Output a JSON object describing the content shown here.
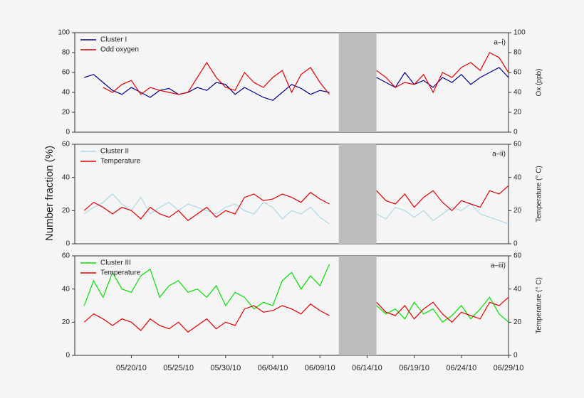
{
  "ylabel": "Number fraction (%)",
  "chart_data": [
    {
      "type": "line",
      "panel_label": "a–i)",
      "y2label": "Ox (ppb)",
      "x": [
        "05/15/10",
        "05/16/10",
        "05/17/10",
        "05/18/10",
        "05/19/10",
        "05/20/10",
        "05/21/10",
        "05/22/10",
        "05/23/10",
        "05/24/10",
        "05/25/10",
        "05/26/10",
        "05/27/10",
        "05/28/10",
        "05/29/10",
        "05/30/10",
        "05/31/10",
        "06/01/10",
        "06/02/10",
        "06/03/10",
        "06/04/10",
        "06/05/10",
        "06/06/10",
        "06/07/10",
        "06/08/10",
        "06/09/10",
        "06/10/10",
        "06/11/10",
        "06/12/10",
        "06/13/10",
        "06/14/10",
        "06/15/10",
        "06/16/10",
        "06/17/10",
        "06/18/10",
        "06/19/10",
        "06/20/10",
        "06/21/10",
        "06/22/10",
        "06/23/10",
        "06/24/10",
        "06/25/10",
        "06/26/10",
        "06/27/10",
        "06/28/10",
        "06/29/10"
      ],
      "xlim": [
        "05/14/10",
        "06/29/10"
      ],
      "shaded_region": [
        "06/11/10",
        "06/15/10"
      ],
      "ylim": [
        0,
        100
      ],
      "yticks": [
        0,
        20,
        40,
        60,
        80,
        100
      ],
      "y2lim": [
        0,
        100
      ],
      "y2ticks": [
        0,
        20,
        40,
        60,
        80,
        100
      ],
      "series": [
        {
          "name": "Cluster I",
          "color": "#00008b",
          "values": [
            55,
            58,
            50,
            42,
            38,
            45,
            40,
            35,
            42,
            44,
            38,
            40,
            45,
            42,
            50,
            48,
            38,
            45,
            40,
            35,
            32,
            40,
            48,
            44,
            38,
            42,
            40,
            null,
            null,
            null,
            null,
            55,
            50,
            45,
            60,
            48,
            52,
            45,
            55,
            50,
            58,
            48,
            55,
            60,
            65,
            55
          ]
        },
        {
          "name": "Odd oxygen",
          "color": "#e00000",
          "axis": "y2",
          "values": [
            null,
            null,
            45,
            40,
            48,
            52,
            38,
            45,
            42,
            40,
            38,
            40,
            55,
            70,
            55,
            45,
            42,
            60,
            50,
            45,
            55,
            62,
            40,
            58,
            65,
            50,
            38,
            null,
            null,
            null,
            null,
            62,
            55,
            45,
            50,
            48,
            58,
            40,
            60,
            55,
            65,
            70,
            62,
            80,
            75,
            60
          ]
        }
      ]
    },
    {
      "type": "line",
      "panel_label": "a–ii)",
      "y2label": "Temperature (° C)",
      "x": [
        "05/15/10",
        "05/16/10",
        "05/17/10",
        "05/18/10",
        "05/19/10",
        "05/20/10",
        "05/21/10",
        "05/22/10",
        "05/23/10",
        "05/24/10",
        "05/25/10",
        "05/26/10",
        "05/27/10",
        "05/28/10",
        "05/29/10",
        "05/30/10",
        "05/31/10",
        "06/01/10",
        "06/02/10",
        "06/03/10",
        "06/04/10",
        "06/05/10",
        "06/06/10",
        "06/07/10",
        "06/08/10",
        "06/09/10",
        "06/10/10",
        "06/11/10",
        "06/12/10",
        "06/13/10",
        "06/14/10",
        "06/15/10",
        "06/16/10",
        "06/17/10",
        "06/18/10",
        "06/19/10",
        "06/20/10",
        "06/21/10",
        "06/22/10",
        "06/23/10",
        "06/24/10",
        "06/25/10",
        "06/26/10",
        "06/27/10",
        "06/28/10",
        "06/29/10"
      ],
      "xlim": [
        "05/14/10",
        "06/29/10"
      ],
      "shaded_region": [
        "06/11/10",
        "06/15/10"
      ],
      "ylim": [
        0,
        60
      ],
      "yticks": [
        0,
        20,
        40,
        60
      ],
      "y2lim": [
        0,
        60
      ],
      "y2ticks": [
        0,
        20,
        40,
        60
      ],
      "series": [
        {
          "name": "Cluster II",
          "color": "#add8e6",
          "values": [
            18,
            22,
            25,
            30,
            24,
            20,
            28,
            18,
            22,
            25,
            20,
            24,
            22,
            20,
            18,
            22,
            24,
            20,
            18,
            25,
            22,
            15,
            20,
            18,
            22,
            16,
            12,
            null,
            null,
            null,
            null,
            18,
            15,
            22,
            20,
            16,
            20,
            14,
            18,
            22,
            20,
            24,
            18,
            16,
            14,
            12
          ]
        },
        {
          "name": "Temperature",
          "color": "#e00000",
          "axis": "y2",
          "values": [
            20,
            25,
            22,
            18,
            22,
            20,
            15,
            22,
            18,
            16,
            20,
            14,
            18,
            22,
            16,
            20,
            18,
            28,
            30,
            26,
            27,
            30,
            28,
            25,
            31,
            27,
            24,
            null,
            null,
            null,
            null,
            32,
            26,
            24,
            30,
            22,
            28,
            32,
            25,
            20,
            26,
            24,
            22,
            32,
            30,
            35
          ]
        }
      ]
    },
    {
      "type": "line",
      "panel_label": "a–iii)",
      "y2label": "Temperature (° C)",
      "x": [
        "05/15/10",
        "05/16/10",
        "05/17/10",
        "05/18/10",
        "05/19/10",
        "05/20/10",
        "05/21/10",
        "05/22/10",
        "05/23/10",
        "05/24/10",
        "05/25/10",
        "05/26/10",
        "05/27/10",
        "05/28/10",
        "05/29/10",
        "05/30/10",
        "05/31/10",
        "06/01/10",
        "06/02/10",
        "06/03/10",
        "06/04/10",
        "06/05/10",
        "06/06/10",
        "06/07/10",
        "06/08/10",
        "06/09/10",
        "06/10/10",
        "06/11/10",
        "06/12/10",
        "06/13/10",
        "06/14/10",
        "06/15/10",
        "06/16/10",
        "06/17/10",
        "06/18/10",
        "06/19/10",
        "06/20/10",
        "06/21/10",
        "06/22/10",
        "06/23/10",
        "06/24/10",
        "06/25/10",
        "06/26/10",
        "06/27/10",
        "06/28/10",
        "06/29/10"
      ],
      "xlim": [
        "05/14/10",
        "06/29/10"
      ],
      "shaded_region": [
        "06/11/10",
        "06/15/10"
      ],
      "xticks": [
        "05/20/10",
        "05/25/10",
        "05/30/10",
        "06/04/10",
        "06/09/10",
        "06/14/10",
        "06/19/10",
        "06/24/10",
        "06/29/10"
      ],
      "ylim": [
        0,
        60
      ],
      "yticks": [
        0,
        20,
        40,
        60
      ],
      "y2lim": [
        0,
        60
      ],
      "y2ticks": [
        0,
        20,
        40,
        60
      ],
      "series": [
        {
          "name": "Cluster III",
          "color": "#00e000",
          "values": [
            30,
            45,
            35,
            50,
            40,
            38,
            48,
            52,
            35,
            42,
            45,
            38,
            40,
            35,
            42,
            30,
            38,
            35,
            28,
            32,
            30,
            45,
            50,
            40,
            48,
            42,
            55,
            null,
            null,
            null,
            null,
            30,
            25,
            28,
            22,
            32,
            25,
            28,
            20,
            24,
            30,
            22,
            28,
            35,
            25,
            20
          ]
        },
        {
          "name": "Temperature",
          "color": "#e00000",
          "axis": "y2",
          "values": [
            20,
            25,
            22,
            18,
            22,
            20,
            15,
            22,
            18,
            16,
            20,
            14,
            18,
            22,
            16,
            20,
            18,
            28,
            30,
            26,
            27,
            30,
            28,
            25,
            31,
            27,
            24,
            null,
            null,
            null,
            null,
            32,
            26,
            24,
            30,
            22,
            28,
            32,
            25,
            20,
            26,
            24,
            22,
            32,
            30,
            35
          ]
        }
      ]
    }
  ]
}
